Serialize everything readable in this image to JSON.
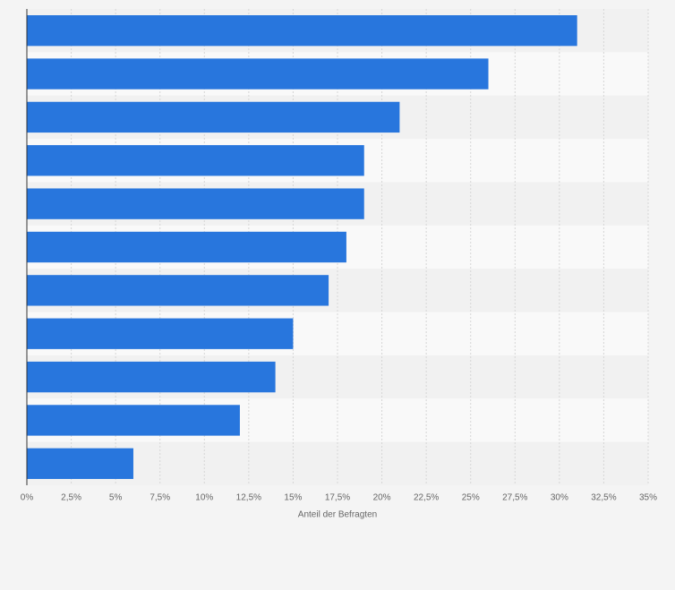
{
  "chart_data": {
    "type": "hbar",
    "categories": [
      null,
      null,
      null,
      null,
      null,
      null,
      null,
      null,
      null,
      null,
      null
    ],
    "values": [
      31,
      26,
      21,
      19,
      19,
      18,
      17,
      15,
      14,
      12,
      6
    ],
    "color": "#2876dd",
    "xlabel": "Anteil der Befragten",
    "xlim": [
      0,
      35
    ],
    "xticks": [
      {
        "value": 0,
        "label": "0%"
      },
      {
        "value": 2.5,
        "label": "2,5%"
      },
      {
        "value": 5,
        "label": "5%"
      },
      {
        "value": 7.5,
        "label": "7,5%"
      },
      {
        "value": 10,
        "label": "10%"
      },
      {
        "value": 12.5,
        "label": "12,5%"
      },
      {
        "value": 15,
        "label": "15%"
      },
      {
        "value": 17.5,
        "label": "17,5%"
      },
      {
        "value": 20,
        "label": "20%"
      },
      {
        "value": 22.5,
        "label": "22,5%"
      },
      {
        "value": 25,
        "label": "25%"
      },
      {
        "value": 27.5,
        "label": "27,5%"
      },
      {
        "value": 30,
        "label": "30%"
      },
      {
        "value": 32.5,
        "label": "32,5%"
      },
      {
        "value": 35,
        "label": "35%"
      }
    ],
    "grid": true
  }
}
